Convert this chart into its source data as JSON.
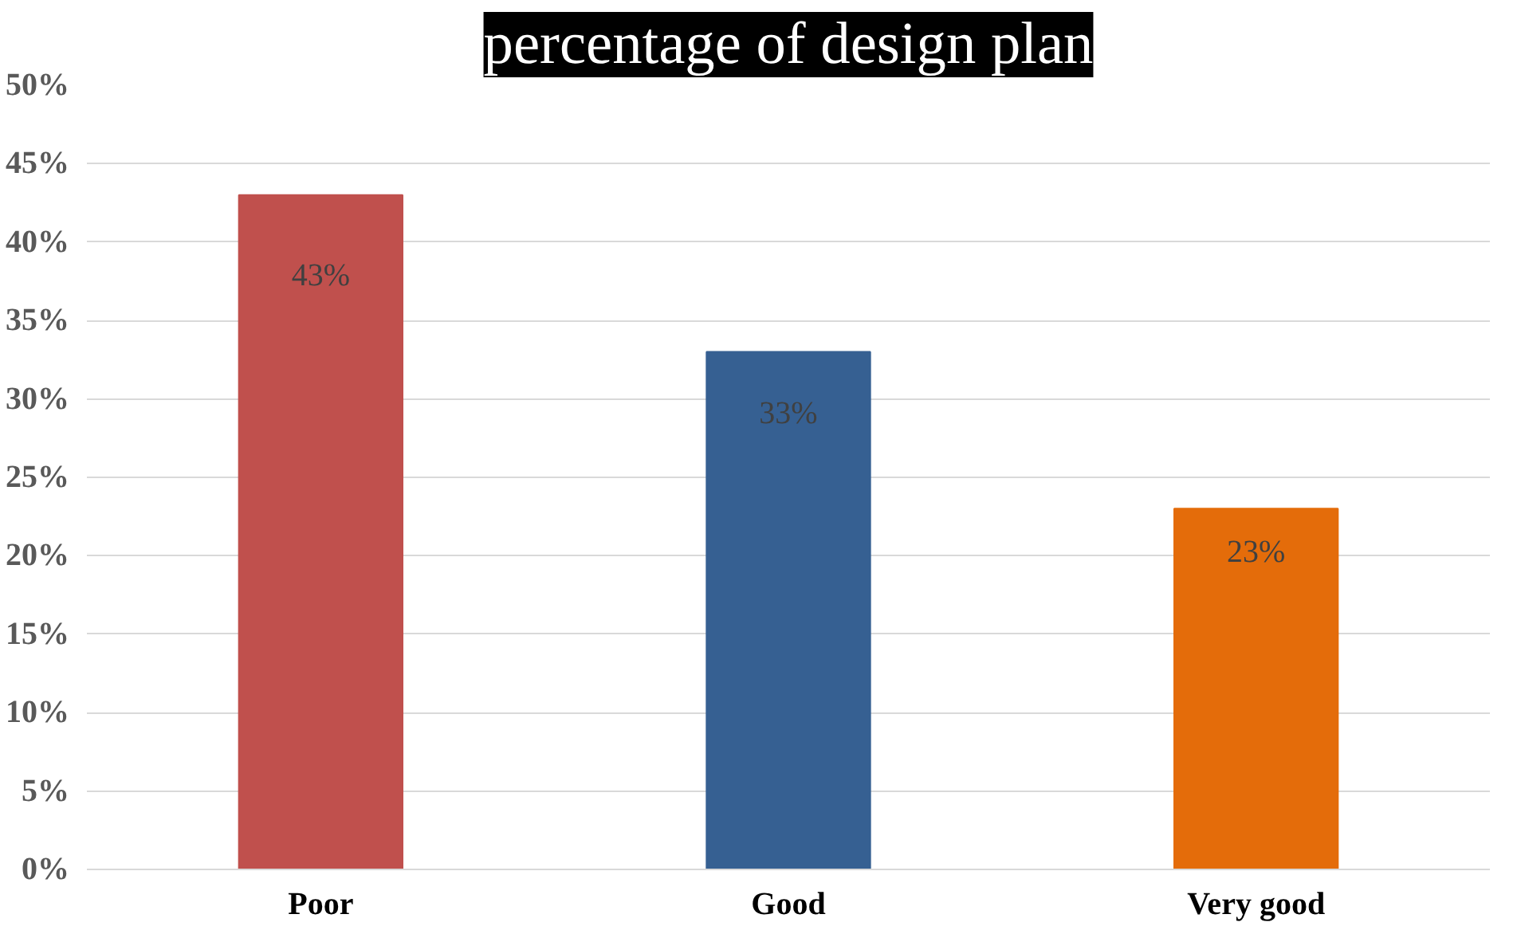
{
  "chart_data": {
    "type": "bar",
    "title": "percentage of design plan",
    "categories": [
      "Poor",
      "Good",
      "Very good"
    ],
    "values": [
      43,
      33,
      23
    ],
    "colors": [
      "#c0504d",
      "#366092",
      "#e46c0a"
    ],
    "ylim": [
      0,
      50
    ],
    "yticks": [
      {
        "value": 0,
        "label": "0%"
      },
      {
        "value": 5,
        "label": "5%"
      },
      {
        "value": 10,
        "label": "10%"
      },
      {
        "value": 15,
        "label": "15%"
      },
      {
        "value": 20,
        "label": "20%"
      },
      {
        "value": 25,
        "label": "25%"
      },
      {
        "value": 30,
        "label": "30%"
      },
      {
        "value": 35,
        "label": "35%"
      },
      {
        "value": 40,
        "label": "40%"
      },
      {
        "value": 45,
        "label": "45%"
      },
      {
        "value": 50,
        "label": "50%"
      }
    ],
    "value_labels": [
      "43%",
      "33%",
      "23%"
    ],
    "grid": "y"
  }
}
